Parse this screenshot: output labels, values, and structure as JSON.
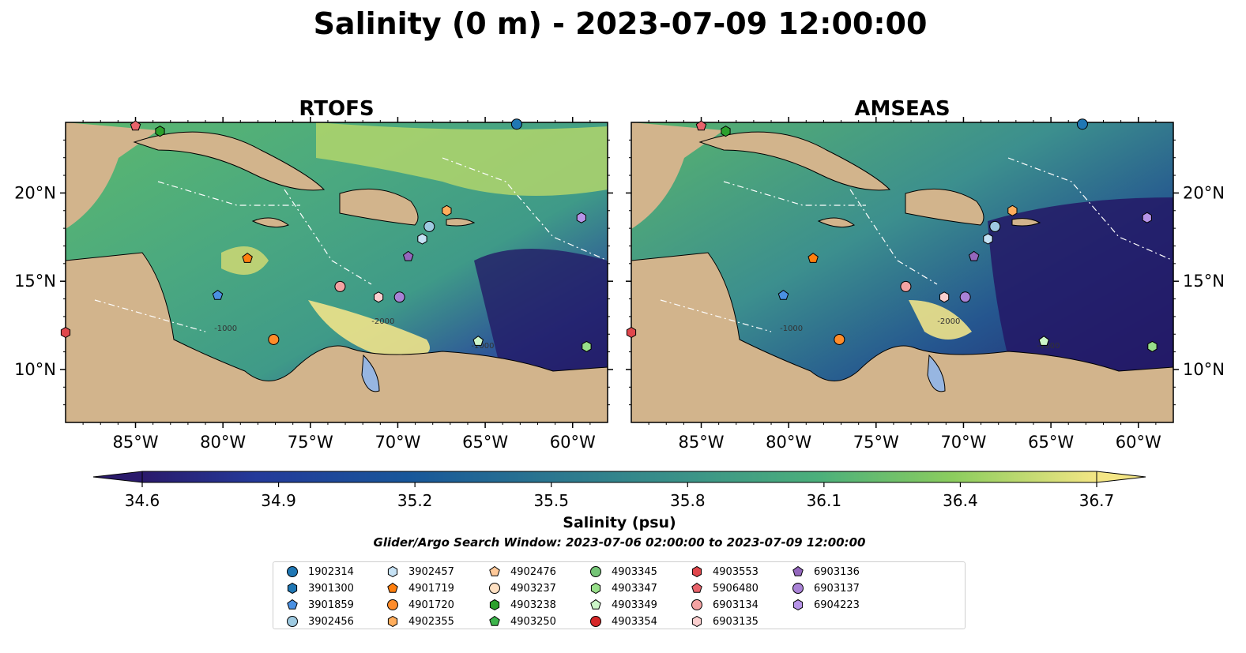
{
  "figure": {
    "title": "Salinity (0 m) - 2023-07-09 12:00:00",
    "search_window": "Glider/Argo Search Window: 2023-07-06 02:00:00 to 2023-07-09 12:00:00"
  },
  "chart_data": {
    "type": "heatmap",
    "panels": [
      {
        "title": "RTOFS",
        "model": "RTOFS"
      },
      {
        "title": "AMSEAS",
        "model": "AMSEAS"
      }
    ],
    "lon_range": [
      -89,
      -58
    ],
    "lat_range": [
      7,
      24
    ],
    "x_ticks": [
      -85,
      -80,
      -75,
      -70,
      -65,
      -60
    ],
    "x_tick_labels": [
      "85°W",
      "80°W",
      "75°W",
      "70°W",
      "65°W",
      "60°W"
    ],
    "y_ticks": [
      10,
      15,
      20
    ],
    "y_tick_labels": [
      "10°N",
      "15°N",
      "20°N"
    ],
    "colorbar": {
      "label": "Salinity (psu)",
      "vmin": 34.6,
      "vmax": 36.7,
      "ticks": [
        34.6,
        34.9,
        35.2,
        35.5,
        35.8,
        36.1,
        36.4,
        36.7
      ],
      "tick_labels": [
        "34.6",
        "34.9",
        "35.2",
        "35.5",
        "35.8",
        "36.1",
        "36.4",
        "36.7"
      ],
      "colormap": "haline",
      "extend": "both"
    },
    "bathymetry_contour_labels": [
      "-1000",
      "-2000"
    ],
    "colors": {
      "land": "#d2b48c",
      "lake": "#97b6e1",
      "ocean_out_of_domain": "#97b6e1"
    },
    "platforms": [
      {
        "id": "1902314",
        "marker": "circle",
        "color": "#1f77b4",
        "lon": -63.2,
        "lat": 23.9
      },
      {
        "id": "3901300",
        "marker": "hexagon",
        "color": "#1f77b4"
      },
      {
        "id": "3901859",
        "marker": "pentagon",
        "color": "#4a90e2",
        "lon": -80.3,
        "lat": 14.2
      },
      {
        "id": "3902456",
        "marker": "circle",
        "color": "#9ecae1",
        "lon": -68.2,
        "lat": 18.1
      },
      {
        "id": "3902457",
        "marker": "hexagon",
        "color": "#c6e2f5",
        "lon": -68.6,
        "lat": 17.4
      },
      {
        "id": "4901719",
        "marker": "pentagon",
        "color": "#ff7f0e",
        "lon": -78.6,
        "lat": 16.3
      },
      {
        "id": "4901720",
        "marker": "circle",
        "color": "#ff8c2a",
        "lon": -77.1,
        "lat": 11.7
      },
      {
        "id": "4902355",
        "marker": "hexagon",
        "color": "#ffad5c",
        "lon": -67.2,
        "lat": 19.0
      },
      {
        "id": "4902476",
        "marker": "pentagon",
        "color": "#ffc999"
      },
      {
        "id": "4903237",
        "marker": "circle",
        "color": "#ffe0c2"
      },
      {
        "id": "4903238",
        "marker": "hexagon",
        "color": "#2ca02c",
        "lon": -83.6,
        "lat": 23.5
      },
      {
        "id": "4903250",
        "marker": "pentagon",
        "color": "#3cb44b"
      },
      {
        "id": "4903345",
        "marker": "circle",
        "color": "#74c476"
      },
      {
        "id": "4903347",
        "marker": "hexagon",
        "color": "#98df8a",
        "lon": -59.2,
        "lat": 11.3
      },
      {
        "id": "4903349",
        "marker": "pentagon",
        "color": "#ccf5c8",
        "lon": -65.4,
        "lat": 11.6
      },
      {
        "id": "4903354",
        "marker": "circle",
        "color": "#d62728"
      },
      {
        "id": "4903553",
        "marker": "hexagon",
        "color": "#e0474c",
        "lon": -89.0,
        "lat": 12.1
      },
      {
        "id": "5906480",
        "marker": "pentagon",
        "color": "#e8636b",
        "lon": -85.0,
        "lat": 23.8
      },
      {
        "id": "6903134",
        "marker": "circle",
        "color": "#f4a3a3",
        "lon": -73.3,
        "lat": 14.7
      },
      {
        "id": "6903135",
        "marker": "hexagon",
        "color": "#fbcfcf",
        "lon": -71.1,
        "lat": 14.1
      },
      {
        "id": "6903136",
        "marker": "pentagon",
        "color": "#9467bd",
        "lon": -69.4,
        "lat": 16.4
      },
      {
        "id": "6903137",
        "marker": "circle",
        "color": "#a982d6",
        "lon": -69.9,
        "lat": 14.1
      },
      {
        "id": "6904223",
        "marker": "hexagon",
        "color": "#b794e8",
        "lon": -59.5,
        "lat": 18.6
      }
    ]
  }
}
